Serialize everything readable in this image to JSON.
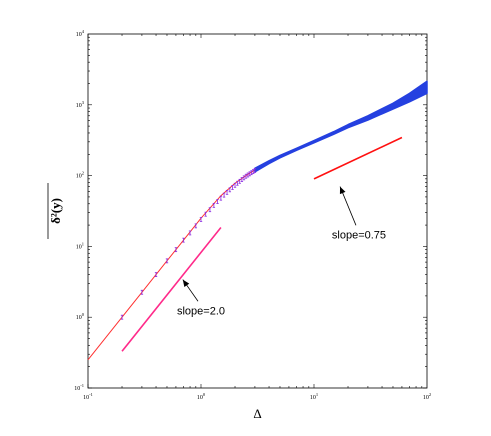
{
  "chart_data": {
    "type": "line",
    "xscale": "log",
    "yscale": "log",
    "xlim": [
      0.1,
      100
    ],
    "ylim": [
      0.1,
      10000
    ],
    "xlabel": "Δ",
    "ylabel": "δ²(y)",
    "x_ticks": [
      0.1,
      1,
      10,
      100
    ],
    "y_ticks": [
      0.1,
      1,
      10,
      100,
      1000,
      10000
    ],
    "x_tick_labels": [
      {
        "base": "10",
        "exp": "-1"
      },
      {
        "base": "10",
        "exp": "0"
      },
      {
        "base": "10",
        "exp": "1"
      },
      {
        "base": "10",
        "exp": "2"
      }
    ],
    "y_tick_labels": [
      {
        "base": "10",
        "exp": "-1"
      },
      {
        "base": "10",
        "exp": "0"
      },
      {
        "base": "10",
        "exp": "1"
      },
      {
        "base": "10",
        "exp": "2"
      },
      {
        "base": "10",
        "exp": "3"
      },
      {
        "base": "10",
        "exp": "4"
      }
    ],
    "grid": false,
    "series": [
      {
        "kind": "fit_line",
        "color": "#ff3030",
        "x": [
          0.1,
          0.2,
          0.3,
          0.5,
          0.7,
          1.0,
          1.5,
          2.0,
          2.5,
          3.0,
          4.0,
          5.0,
          7.0,
          10.0,
          15.0,
          20.0,
          30.0,
          50.0,
          70.0,
          100.0
        ],
        "y": [
          0.25,
          1.0,
          2.25,
          6.25,
          12.25,
          25.0,
          52.0,
          78.0,
          100.0,
          120.0,
          155.0,
          185.0,
          235.0,
          300.0,
          400.0,
          500.0,
          650.0,
          950.0,
          1250.0,
          1700.0
        ]
      },
      {
        "kind": "data_band",
        "color": "#2540e0",
        "x": [
          3.0,
          4.0,
          5.0,
          7.0,
          10.0,
          15.0,
          20.0,
          30.0,
          50.0,
          70.0,
          100.0
        ],
        "y_low": [
          113.0,
          148.0,
          178.0,
          228.0,
          290.0,
          385.0,
          475.0,
          610.0,
          870.0,
          1100.0,
          1450.0
        ],
        "y_high": [
          127.0,
          162.0,
          193.0,
          243.0,
          312.0,
          418.0,
          525.0,
          700.0,
          1050.0,
          1450.0,
          2150.0
        ]
      },
      {
        "kind": "error_bars",
        "color": "#8a2be2",
        "x": [
          0.2,
          0.3,
          0.4,
          0.5,
          0.6,
          0.7,
          0.8,
          0.9,
          1.0,
          1.1,
          1.2,
          1.3,
          1.4,
          1.5,
          1.6,
          1.7,
          1.8,
          1.9,
          2.0,
          2.1,
          2.2,
          2.3,
          2.4,
          2.5,
          2.6,
          2.7,
          2.8,
          2.9,
          3.0
        ],
        "y": [
          1.0,
          2.25,
          4.0,
          6.25,
          9.0,
          12.25,
          15.5,
          19.5,
          24.0,
          28.5,
          33.0,
          38.0,
          43.0,
          48.0,
          53.0,
          58.0,
          63.0,
          68.0,
          73.0,
          78.0,
          83.0,
          88.0,
          93.0,
          98.0,
          102.0,
          106.0,
          110.0,
          114.0,
          118.0
        ]
      },
      {
        "kind": "reference_line",
        "color": "#ff2a8a",
        "x": [
          0.2,
          1.5
        ],
        "y": [
          0.33,
          18.5
        ]
      },
      {
        "kind": "reference_line",
        "color": "#ff1010",
        "x": [
          10.0,
          60.0
        ],
        "y": [
          90.0,
          345.0
        ]
      }
    ],
    "annotations": [
      {
        "text": "slope=2.0",
        "text_x": 1.0,
        "text_y": 1.1,
        "arrow_tip_x": 0.69,
        "arrow_tip_y": 3.4
      },
      {
        "text": "slope=0.75",
        "text_x": 25.0,
        "text_y": 13.0,
        "arrow_tip_x": 17.0,
        "arrow_tip_y": 70.0
      }
    ]
  }
}
